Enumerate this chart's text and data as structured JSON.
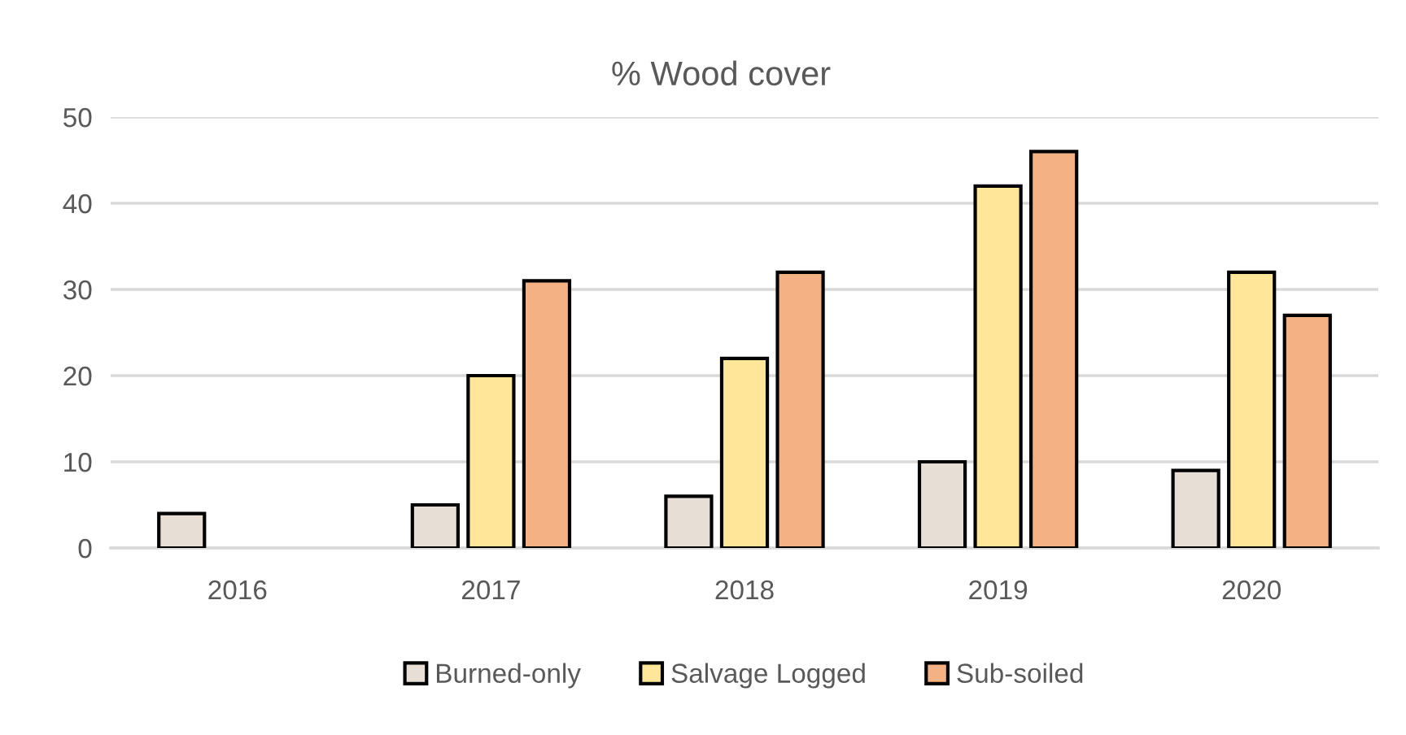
{
  "chart_data": {
    "type": "bar",
    "title": "% Wood cover",
    "categories": [
      "2016",
      "2017",
      "2018",
      "2019",
      "2020"
    ],
    "series": [
      {
        "name": "Burned-only",
        "color": "#e7dfd6",
        "values": [
          4,
          5,
          6,
          10,
          9
        ]
      },
      {
        "name": "Salvage Logged",
        "color": "#ffe699",
        "values": [
          null,
          20,
          22,
          42,
          32
        ]
      },
      {
        "name": "Sub-soiled",
        "color": "#f4b183",
        "values": [
          null,
          31,
          32,
          46,
          27
        ]
      }
    ],
    "ylim": [
      0,
      50
    ],
    "yticks": [
      0,
      10,
      20,
      30,
      40,
      50
    ],
    "grid": "y",
    "legend": "bottom"
  }
}
